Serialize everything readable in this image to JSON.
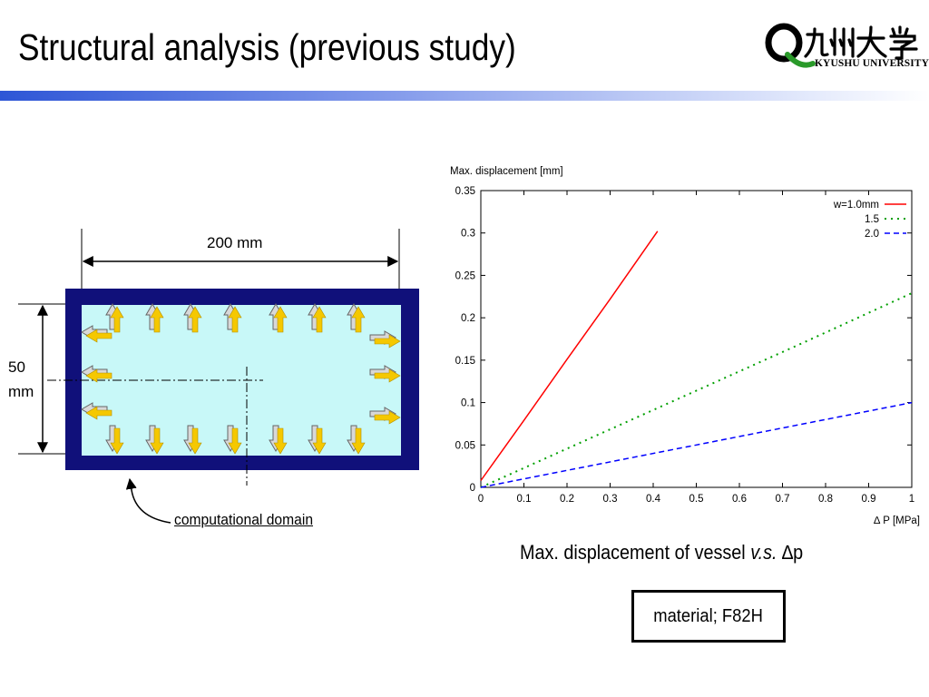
{
  "slide": {
    "title": "Structural analysis (previous study)",
    "colors": {
      "accent_bar": "#2e56d6",
      "vessel_wall": "#10107a",
      "domain_fill": "#c8f8f8",
      "arrow": "#f5c800"
    }
  },
  "logo": {
    "text_jp": "Q九州大学",
    "text_en": "KYUSHU UNIVERSITY",
    "icon": "kyushu-university-logo"
  },
  "diagram": {
    "width_label": "200 mm",
    "height_label_value": "50",
    "height_label_unit": "mm",
    "domain_label": "computational domain"
  },
  "chart_data": {
    "type": "line",
    "title": "",
    "ylabel": "Max. displacement  [mm]",
    "xlabel": "∆ P [MPa]",
    "xlim": [
      0,
      1
    ],
    "ylim": [
      0,
      0.35
    ],
    "x_ticks": [
      "0",
      "0.1",
      "0.2",
      "0.3",
      "0.4",
      "0.5",
      "0.6",
      "0.7",
      "0.8",
      "0.9",
      "1"
    ],
    "y_ticks": [
      "0",
      "0.05",
      "0.1",
      "0.15",
      "0.2",
      "0.25",
      "0.3",
      "0.35"
    ],
    "grid": false,
    "legend": "top-right",
    "series": [
      {
        "name": "w=1.0mm",
        "color": "#ff0000",
        "style": "solid",
        "x": [
          0.0,
          0.1,
          0.2,
          0.3,
          0.41
        ],
        "y": [
          0.008,
          0.079,
          0.151,
          0.222,
          0.302
        ]
      },
      {
        "name": "1.5",
        "color": "#00a000",
        "style": "dotted",
        "x": [
          0.0,
          0.25,
          0.5,
          0.75,
          1.0
        ],
        "y": [
          0.0,
          0.057,
          0.114,
          0.171,
          0.229
        ]
      },
      {
        "name": "2.0",
        "color": "#0000ff",
        "style": "dashed",
        "x": [
          0.0,
          0.25,
          0.5,
          0.75,
          1.0
        ],
        "y": [
          0.0,
          0.025,
          0.05,
          0.075,
          0.1
        ]
      }
    ]
  },
  "caption": {
    "prefix": "Max. displacement of vessel ",
    "vs": "v.s.",
    "suffix": " ∆p"
  },
  "material": {
    "label": "material; F82H"
  }
}
